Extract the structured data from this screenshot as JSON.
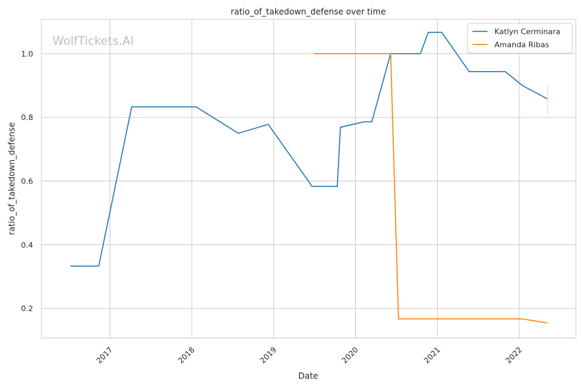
{
  "watermark": "WolfTickets.AI",
  "chart_data": {
    "type": "line",
    "title": "ratio_of_takedown_defense over time",
    "xlabel": "Date",
    "ylabel": "ratio_of_takedown_defense",
    "x_type": "date",
    "xlim": [
      "2016-03-01",
      "2022-09-10"
    ],
    "ylim": [
      0.107,
      1.108
    ],
    "x_ticks": [
      "2017-01-01",
      "2018-01-01",
      "2019-01-01",
      "2020-01-01",
      "2021-01-01",
      "2022-01-01"
    ],
    "x_tick_labels": [
      "2017",
      "2018",
      "2019",
      "2020",
      "2021",
      "2022"
    ],
    "y_ticks": [
      0.2,
      0.4,
      0.6,
      0.8,
      1.0
    ],
    "y_tick_labels": [
      "0.2",
      "0.4",
      "0.6",
      "0.8",
      "1.0"
    ],
    "grid": true,
    "legend_position": "top-right",
    "series": [
      {
        "name": "Katlyn Cerminara",
        "color": "#1f77b4",
        "x": [
          "2016-07-09",
          "2016-11-12",
          "2017-04-08",
          "2018-01-20",
          "2018-07-28",
          "2018-12-08",
          "2019-06-22",
          "2019-10-12",
          "2019-10-26",
          "2020-02-08",
          "2020-03-14",
          "2020-06-06",
          "2020-10-17",
          "2020-11-21",
          "2021-01-20",
          "2021-05-22",
          "2021-10-30",
          "2022-01-15",
          "2022-05-07"
        ],
        "y": [
          0.333,
          0.333,
          0.833,
          0.833,
          0.75,
          0.778,
          0.583,
          0.583,
          0.769,
          0.786,
          0.786,
          1.0,
          1.0,
          1.067,
          1.067,
          0.944,
          0.944,
          0.9,
          0.858
        ]
      },
      {
        "name": "Amanda Ribas",
        "color": "#ff7f0e",
        "x": [
          "2019-06-29",
          "2020-06-06",
          "2020-07-11",
          "2022-01-15",
          "2022-05-07"
        ],
        "y": [
          1.0,
          1.0,
          0.167,
          0.167,
          0.154
        ]
      }
    ]
  }
}
